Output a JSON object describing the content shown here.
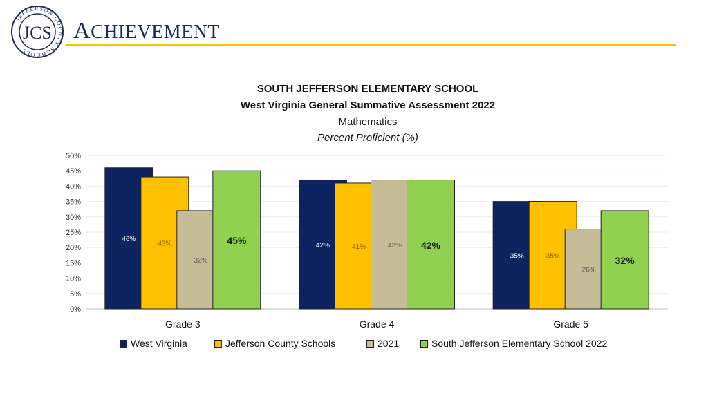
{
  "header": {
    "title_first": "A",
    "title_rest": "CHIEVEMENT",
    "logo_text": "JEFFERSON COUNTY SCHOOLS",
    "logo_monogram": "JCS"
  },
  "colors": {
    "title": "#1a2a5e",
    "rule": "#f5c400",
    "west_virginia": "#0d2461",
    "jefferson_county": "#ffc000",
    "year_2021": "#c4bd97",
    "south_jefferson_2022": "#92d050"
  },
  "chart_data": {
    "type": "bar",
    "title": "SOUTH JEFFERSON ELEMENTARY SCHOOL",
    "subtitle": "West Virginia General Summative Assessment 2022",
    "subject": "Mathematics",
    "ylabel": "Percent Proficient (%)",
    "categories": [
      "Grade 3",
      "Grade 4",
      "Grade 5"
    ],
    "ylim": [
      0,
      50
    ],
    "yticks": [
      "0%",
      "5%",
      "10%",
      "15%",
      "20%",
      "25%",
      "30%",
      "35%",
      "40%",
      "45%",
      "50%"
    ],
    "series": [
      {
        "name": "West Virginia",
        "values": [
          46,
          42,
          35
        ],
        "labels": [
          "46%",
          "42%",
          "35%"
        ]
      },
      {
        "name": "Jefferson County Schools",
        "values": [
          43,
          41,
          35
        ],
        "labels": [
          "43%",
          "41%",
          "35%"
        ]
      },
      {
        "name": "2021",
        "values": [
          32,
          42,
          26
        ],
        "labels": [
          "32%",
          "42%",
          "26%"
        ]
      },
      {
        "name": "South Jefferson Elementary School 2022",
        "values": [
          45,
          42,
          32
        ],
        "labels": [
          "45%",
          "42%",
          "32%"
        ]
      }
    ],
    "legend_position": "bottom"
  }
}
